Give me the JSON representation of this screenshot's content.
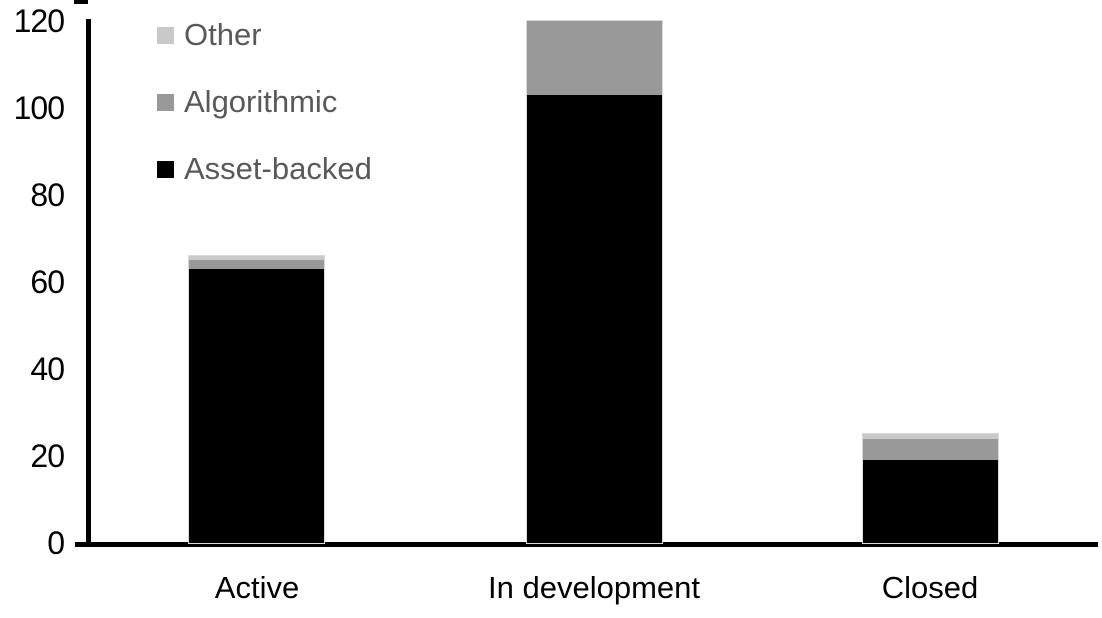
{
  "chart_data": {
    "type": "bar",
    "stacked": true,
    "title": "",
    "categories": [
      "Active",
      "In development",
      "Closed"
    ],
    "series": [
      {
        "name": "Asset-backed",
        "color": "#000000",
        "values": [
          63,
          103,
          19
        ]
      },
      {
        "name": "Algorithmic",
        "color": "#999999",
        "values": [
          2,
          17,
          5
        ]
      },
      {
        "name": "Other",
        "color": "#c9c9c9",
        "values": [
          1,
          0,
          1
        ]
      }
    ],
    "totals": [
      66,
      120,
      25
    ],
    "xlabel": "",
    "ylabel": "",
    "ylim": [
      0,
      120
    ],
    "y_ticks": [
      0,
      20,
      40,
      60,
      80,
      100,
      120
    ],
    "y_tick_labels": [
      "120",
      "100",
      "80",
      "60",
      "40",
      "20",
      "0"
    ],
    "grid": "off",
    "legend_position": "top-left",
    "legend": [
      {
        "label": "Other",
        "color": "#c9c9c9"
      },
      {
        "label": "Algorithmic",
        "color": "#999999"
      },
      {
        "label": "Asset-backed",
        "color": "#000000"
      }
    ],
    "colors": {
      "axis": "#000000",
      "tick_label_text": "#000000",
      "category_label_text": "#000000",
      "legend_text": "#595959",
      "background": "#ffffff"
    }
  }
}
